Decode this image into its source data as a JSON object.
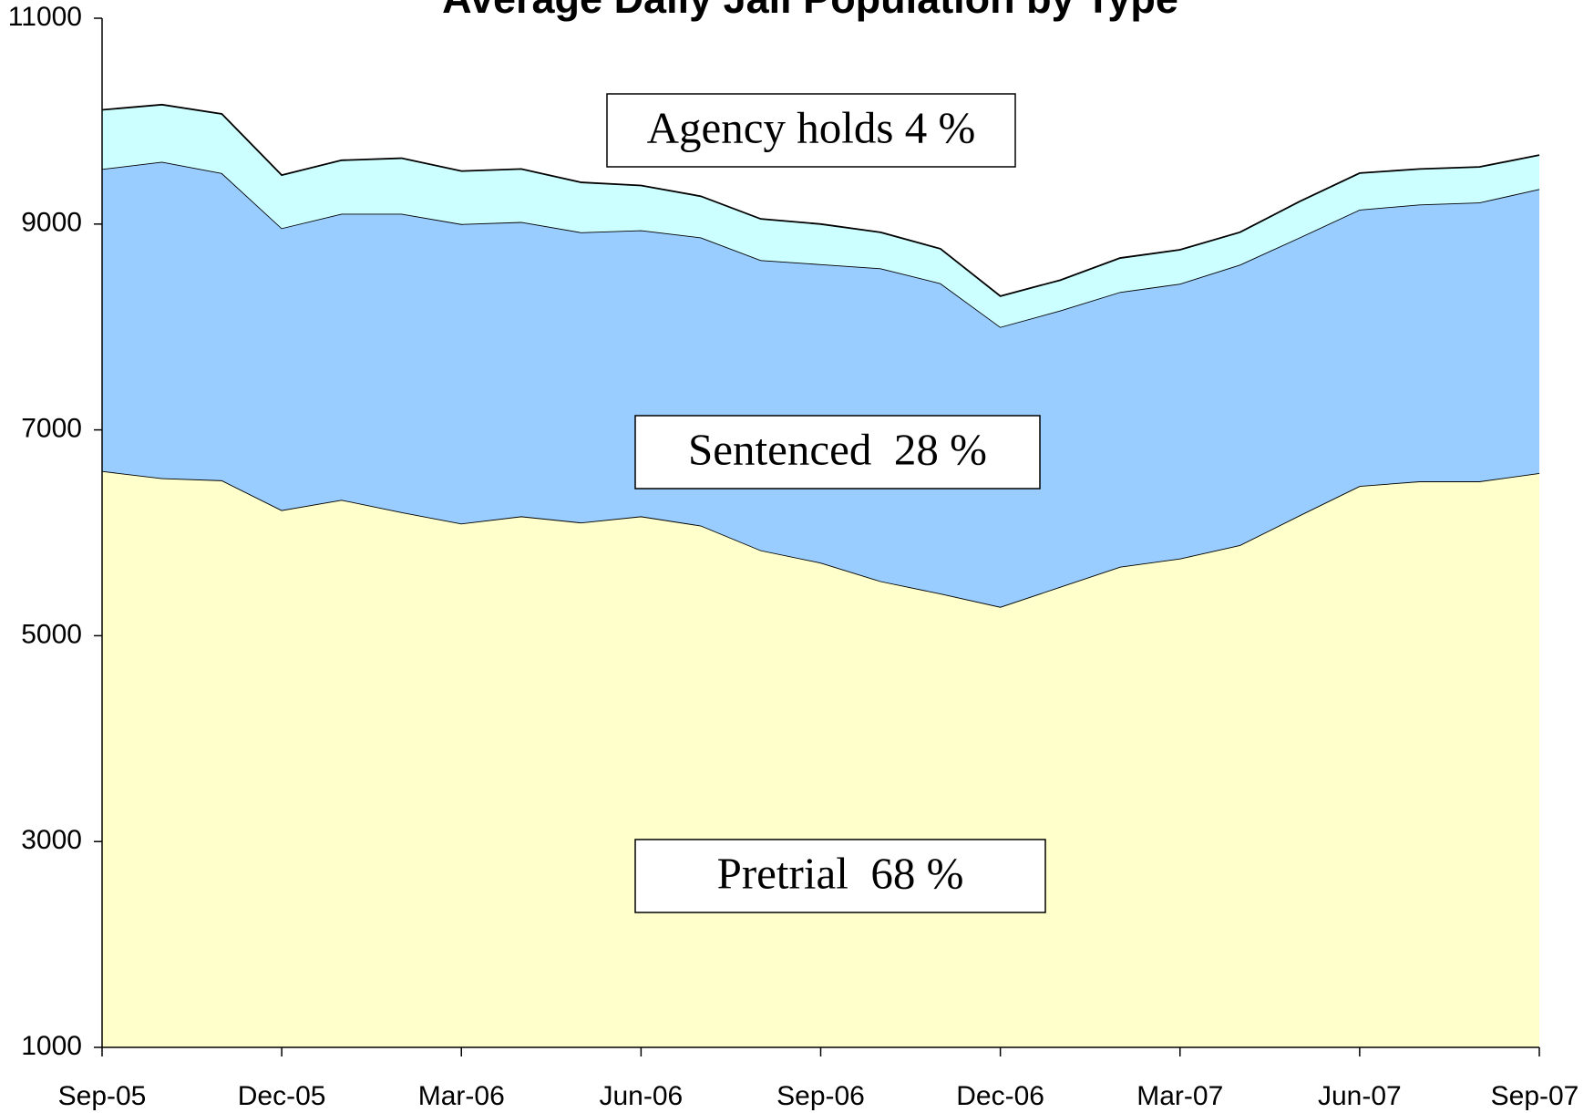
{
  "chart_data": {
    "type": "stacked_area",
    "title": "Average Daily Jail Population by Type",
    "categories": [
      "Sep-05",
      null,
      null,
      "Dec-05",
      null,
      null,
      "Mar-06",
      null,
      null,
      "Jun-06",
      null,
      null,
      "Sep-06",
      null,
      null,
      "Dec-06",
      null,
      null,
      "Mar-07",
      null,
      null,
      "Jun-07",
      null,
      null,
      "Sep-07"
    ],
    "series": [
      {
        "name": "Pretrial",
        "color": "#ffffcc",
        "values": [
          6600,
          6530,
          6510,
          6220,
          6320,
          6200,
          6090,
          6160,
          6100,
          6160,
          6070,
          5830,
          5710,
          5530,
          5410,
          5280,
          5475,
          5670,
          5750,
          5880,
          6170,
          6455,
          6500,
          6500,
          6580
        ]
      },
      {
        "name": "Sentenced",
        "color": "#99ccff",
        "values": [
          2935,
          3075,
          2985,
          2740,
          2780,
          2900,
          2910,
          2860,
          2820,
          2780,
          2800,
          2820,
          2900,
          3040,
          3015,
          2720,
          2685,
          2670,
          2670,
          2725,
          2700,
          2685,
          2690,
          2710,
          2760
        ]
      },
      {
        "name": "Agency holds",
        "color": "#ccffff",
        "values": [
          575,
          555,
          575,
          515,
          520,
          540,
          515,
          515,
          485,
          435,
          400,
          400,
          390,
          350,
          335,
          300,
          295,
          330,
          330,
          315,
          350,
          355,
          345,
          345,
          330
        ]
      }
    ],
    "annotations": [
      "Agency holds 4 %",
      "Sentenced  28 %",
      "Pretrial  68 %"
    ],
    "ylim": [
      1000,
      11000
    ],
    "yticks": [
      1000,
      3000,
      5000,
      7000,
      9000,
      11000
    ],
    "grid": false
  }
}
